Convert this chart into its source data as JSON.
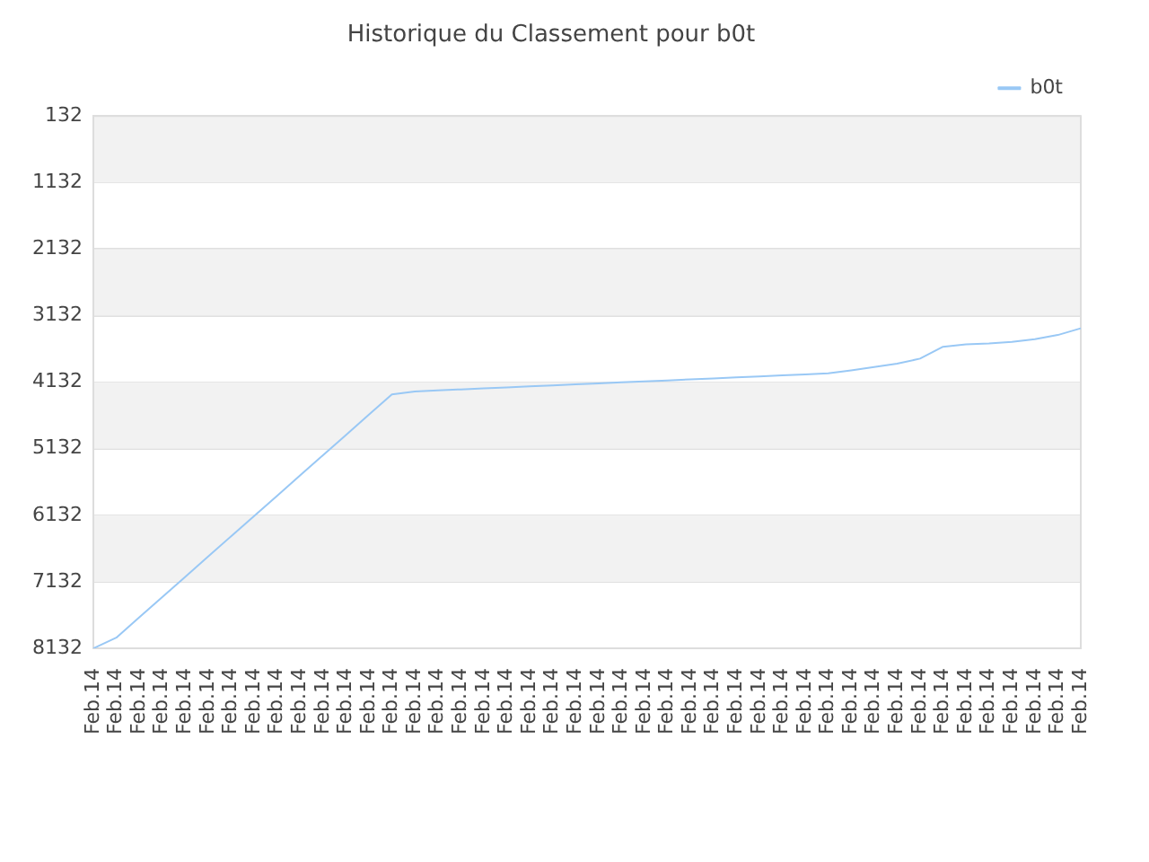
{
  "chart_data": {
    "type": "line",
    "title": "Historique du Classement pour b0t",
    "categories": [
      "Feb.14",
      "Feb.14",
      "Feb.14",
      "Feb.14",
      "Feb.14",
      "Feb.14",
      "Feb.14",
      "Feb.14",
      "Feb.14",
      "Feb.14",
      "Feb.14",
      "Feb.14",
      "Feb.14",
      "Feb.14",
      "Feb.14",
      "Feb.14",
      "Feb.14",
      "Feb.14",
      "Feb.14",
      "Feb.14",
      "Feb.14",
      "Feb.14",
      "Feb.14",
      "Feb.14",
      "Feb.14",
      "Feb.14",
      "Feb.14",
      "Feb.14",
      "Feb.14",
      "Feb.14",
      "Feb.14",
      "Feb.14",
      "Feb.14",
      "Feb.14",
      "Feb.14",
      "Feb.14",
      "Feb.14",
      "Feb.14",
      "Feb.14",
      "Feb.14",
      "Feb.14",
      "Feb.14",
      "Feb.14",
      "Feb.14"
    ],
    "series": [
      {
        "name": "b0t",
        "color": "#99c8f5",
        "values": [
          8132,
          7971,
          7667,
          7361,
          7057,
          6753,
          6447,
          6143,
          5839,
          5535,
          5229,
          4925,
          4621,
          4315,
          4272,
          4255,
          4240,
          4225,
          4210,
          4195,
          4180,
          4165,
          4150,
          4135,
          4120,
          4105,
          4090,
          4075,
          4060,
          4045,
          4030,
          4015,
          4000,
          3955,
          3905,
          3854,
          3778,
          3600,
          3563,
          3550,
          3525,
          3487,
          3423,
          3322
        ]
      }
    ],
    "ylim": [
      8132,
      132
    ],
    "yticks": [
      132,
      1132,
      2132,
      3132,
      4132,
      5132,
      6132,
      7132,
      8132
    ],
    "bands": [
      {
        "axis": "y",
        "from": 132,
        "to": 1132,
        "color": "#f2f2f2"
      },
      {
        "axis": "y",
        "from": 2132,
        "to": 3132,
        "color": "#f2f2f2"
      },
      {
        "axis": "y",
        "from": 4132,
        "to": 5132,
        "color": "#f2f2f2"
      },
      {
        "axis": "y",
        "from": 6132,
        "to": 7132,
        "color": "#f2f2f2"
      }
    ],
    "grid": "y",
    "legend": "top right",
    "marker": "none",
    "line_style": "solid"
  }
}
